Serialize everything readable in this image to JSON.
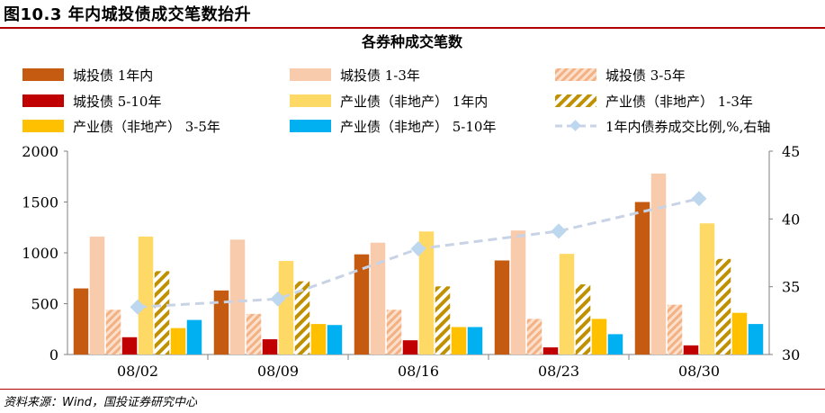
{
  "figure_title": "图10.3 年内城投债成交笔数抬升",
  "source": "资料来源：Wind，国投证券研究中心",
  "chart_data": {
    "type": "bar",
    "title": "各券种成交笔数",
    "categories": [
      "08/02",
      "08/09",
      "08/16",
      "08/23",
      "08/30"
    ],
    "ylim": [
      0,
      2000
    ],
    "yticks": [
      0,
      500,
      1000,
      1500,
      2000
    ],
    "y2lim": [
      30,
      45
    ],
    "y2ticks": [
      30,
      35,
      40,
      45
    ],
    "series": [
      {
        "name": "城投债 1年内",
        "color": "#c55a11",
        "pattern": "solid",
        "values": [
          650,
          630,
          985,
          925,
          1500
        ]
      },
      {
        "name": "城投债 1-3年",
        "color": "#f8cbad",
        "pattern": "solid",
        "values": [
          1160,
          1130,
          1100,
          1220,
          1780
        ]
      },
      {
        "name": "城投债 3-5年",
        "color": "#f4b183",
        "pattern": "hatch",
        "values": [
          440,
          400,
          440,
          350,
          490
        ]
      },
      {
        "name": "城投债 5-10年",
        "color": "#c00000",
        "pattern": "solid",
        "values": [
          170,
          150,
          140,
          70,
          90
        ]
      },
      {
        "name": "产业债（非地产） 1年内",
        "color": "#ffd966",
        "pattern": "solid",
        "values": [
          1160,
          920,
          1210,
          990,
          1290
        ]
      },
      {
        "name": "产业债（非地产） 1-3年",
        "color": "#bf9000",
        "pattern": "hatch-dark",
        "values": [
          820,
          720,
          670,
          690,
          940
        ]
      },
      {
        "name": "产业债（非地产） 3-5年",
        "color": "#ffc000",
        "pattern": "solid",
        "values": [
          260,
          300,
          270,
          350,
          410
        ]
      },
      {
        "name": "产业债（非地产） 5-10年",
        "color": "#00b0f0",
        "pattern": "solid",
        "values": [
          340,
          290,
          270,
          200,
          300
        ]
      }
    ],
    "line_series": {
      "name": "1年内债券成交比例,%,右轴",
      "color": "#c9d3e6",
      "axis": "right",
      "values": [
        33.5,
        34.1,
        37.8,
        39.1,
        41.5
      ]
    },
    "legend_position": "top"
  }
}
